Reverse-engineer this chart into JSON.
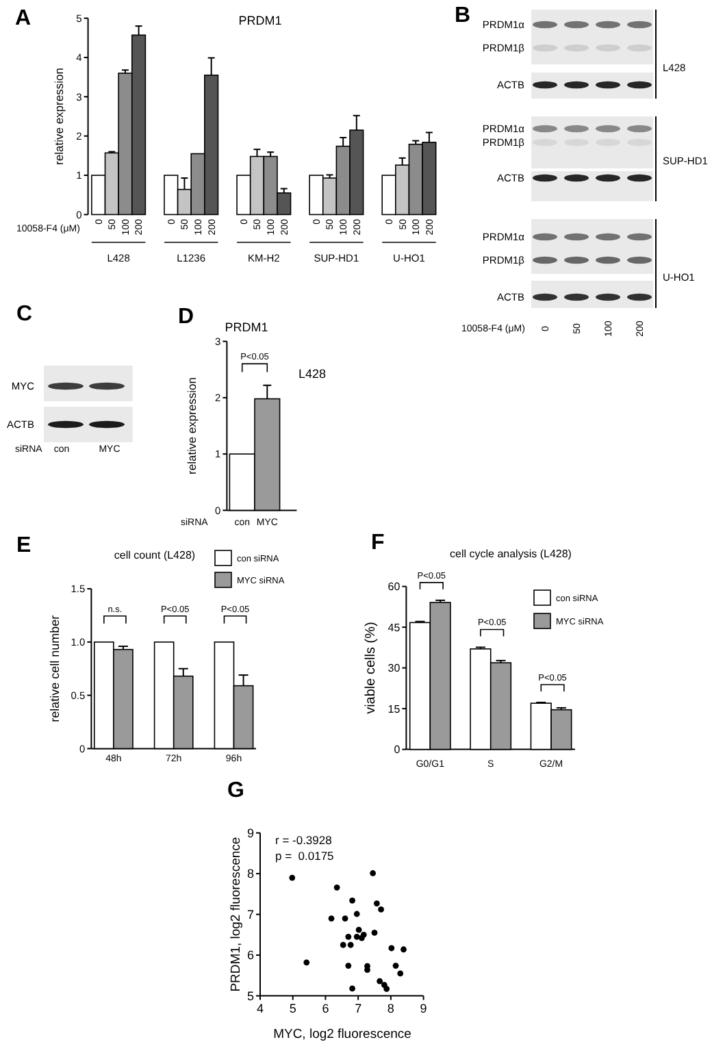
{
  "chart_data": [
    {
      "type": "bar",
      "title": "PRDM1",
      "ylabel": "relative expression",
      "xlabel": "10058-F4 (μM)",
      "categories": [
        "L428",
        "L1236",
        "KM-H2",
        "SUP-HD1",
        "U-HO1"
      ],
      "series": [
        {
          "name": "0",
          "color": "#ffffff",
          "values": [
            1,
            1,
            1,
            1,
            1
          ]
        },
        {
          "name": "50",
          "color": "#c4c4c4",
          "values": [
            1.57,
            0.64,
            1.48,
            0.93,
            1.26
          ],
          "errors": [
            0.03,
            0.29,
            0.18,
            0.08,
            0.18
          ]
        },
        {
          "name": "100",
          "color": "#8c8c8c",
          "values": [
            3.6,
            1.55,
            1.48,
            1.74,
            1.79
          ],
          "errors": [
            0.08,
            null,
            0.11,
            0.22,
            0.09
          ]
        },
        {
          "name": "200",
          "color": "#555555",
          "values": [
            4.57,
            3.55,
            0.55,
            2.15,
            1.84
          ],
          "errors": [
            0.23,
            0.44,
            0.11,
            0.37,
            0.25
          ]
        }
      ],
      "ylim": [
        0,
        5
      ],
      "yticks": [
        0,
        1,
        2,
        3,
        4,
        5
      ],
      "annotations": [
        "A"
      ]
    },
    {
      "type": "other",
      "xlabel": "10058-F4 (μM)",
      "categories": [
        "0",
        "50",
        "100",
        "200"
      ],
      "annotations": [
        "B",
        "PRDM1α",
        "PRDM1β",
        "ACTB",
        "L428",
        "PRDM1α",
        "PRDM1β",
        "ACTB",
        "SUP-HD1",
        "PRDM1α",
        "PRDM1β",
        "ACTB",
        "U-HO1"
      ]
    },
    {
      "type": "other",
      "xlabel": "siRNA",
      "categories": [
        "con",
        "MYC"
      ],
      "annotations": [
        "C",
        "MYC",
        "ACTB"
      ]
    },
    {
      "type": "bar",
      "title": "PRDM1",
      "ylabel": "relative expression",
      "xlabel": "siRNA",
      "categories": [
        "con",
        "MYC"
      ],
      "values": [
        1,
        1.98
      ],
      "colors": [
        "#ffffff",
        "#9a9a9a"
      ],
      "errors": [
        null,
        0.24
      ],
      "ylim": [
        0,
        3
      ],
      "yticks": [
        0,
        1,
        2,
        3
      ],
      "annotations": [
        "D",
        "P<0.05",
        "L428"
      ]
    },
    {
      "type": "bar",
      "title": "cell count (L428)",
      "ylabel": "relative cell number",
      "categories": [
        "48h",
        "72h",
        "96h"
      ],
      "series": [
        {
          "name": "con siRNA",
          "color": "#ffffff",
          "values": [
            1,
            1,
            1
          ]
        },
        {
          "name": "MYC siRNA",
          "color": "#9a9a9a",
          "values": [
            0.93,
            0.68,
            0.59
          ],
          "errors": [
            0.03,
            0.07,
            0.1
          ]
        }
      ],
      "ylim": [
        0,
        1.5
      ],
      "yticks": [
        0,
        0.5,
        {
          "value": 1,
          "label": "1.0"
        },
        1.5
      ],
      "legend": "top right",
      "annotations": [
        "E",
        "n.s.",
        "P<0.05",
        "P<0.05"
      ]
    },
    {
      "type": "bar",
      "title": "cell cycle analysis (L428)",
      "ylabel": "viable cells (%)",
      "categories": [
        "G0/G1",
        "S",
        "G2/M"
      ],
      "series": [
        {
          "name": "con siRNA",
          "color": "#ffffff",
          "values": [
            46.7,
            37,
            17
          ],
          "errors": [
            0.4,
            0.6,
            0.3
          ]
        },
        {
          "name": "MYC siRNA",
          "color": "#9a9a9a",
          "values": [
            54.1,
            31.9,
            14.6
          ],
          "errors": [
            0.8,
            0.8,
            0.7
          ]
        }
      ],
      "ylim": [
        0,
        60
      ],
      "yticks": [
        0,
        15,
        30,
        45,
        60
      ],
      "legend": "top right",
      "annotations": [
        "F",
        "P<0.05",
        "P<0.05",
        "P<0.05"
      ]
    },
    {
      "type": "scatter",
      "xlabel": "MYC, log2 fluorescence",
      "ylabel": "PRDM1, log2 fluorescence",
      "x": [
        4.98,
        6.35,
        7.45,
        6.82,
        7.57,
        7.7,
        6.96,
        6.18,
        6.6,
        7.02,
        7.17,
        7.11,
        6.7,
        6.96,
        7.5,
        6.54,
        6.77,
        8.02,
        8.39,
        5.42,
        6.7,
        7.28,
        7.28,
        8.15,
        8.29,
        7.66,
        7.8,
        7.87,
        6.82
      ],
      "values": [
        7.9,
        7.66,
        8.01,
        7.34,
        7.27,
        7.12,
        7.01,
        6.9,
        6.9,
        6.62,
        6.5,
        6.42,
        6.45,
        6.45,
        6.55,
        6.25,
        6.25,
        6.17,
        6.14,
        5.82,
        5.74,
        5.73,
        5.64,
        5.74,
        5.55,
        5.36,
        5.27,
        5.17,
        5.18
      ],
      "color": "#000000",
      "marker": "circle",
      "xlim": [
        4,
        9
      ],
      "xticks": [
        4,
        5,
        6,
        7,
        8,
        9
      ],
      "ylim": [
        5,
        9
      ],
      "yticks": [
        5,
        6,
        7,
        8,
        9
      ],
      "annotations": [
        "G",
        "r = -0.3928",
        "p =  0.0175"
      ]
    }
  ]
}
